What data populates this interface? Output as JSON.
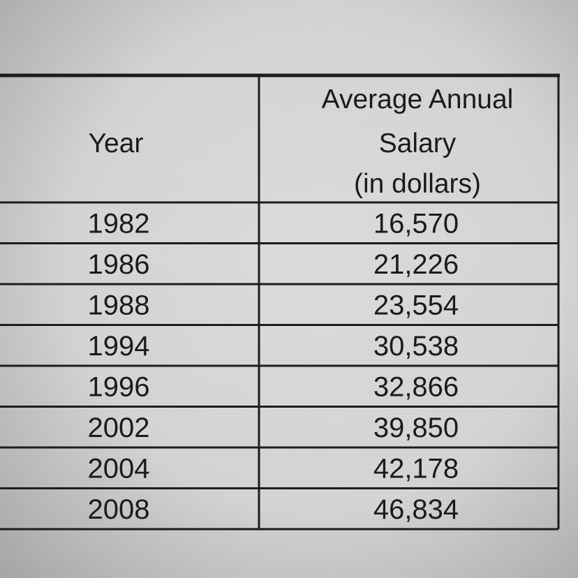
{
  "chart_data": {
    "type": "table",
    "columns": [
      "Year",
      "Average Annual Salary (in dollars)"
    ],
    "header": {
      "year": "Year",
      "salary_lines": [
        "Average Annual",
        "Salary",
        "(in dollars)"
      ]
    },
    "rows": [
      {
        "year": "1982",
        "salary": "16,570"
      },
      {
        "year": "1986",
        "salary": "21,226"
      },
      {
        "year": "1988",
        "salary": "23,554"
      },
      {
        "year": "1994",
        "salary": "30,538"
      },
      {
        "year": "1996",
        "salary": "32,866"
      },
      {
        "year": "2002",
        "salary": "39,850"
      },
      {
        "year": "2004",
        "salary": "42,178"
      },
      {
        "year": "2008",
        "salary": "46,834"
      }
    ]
  }
}
